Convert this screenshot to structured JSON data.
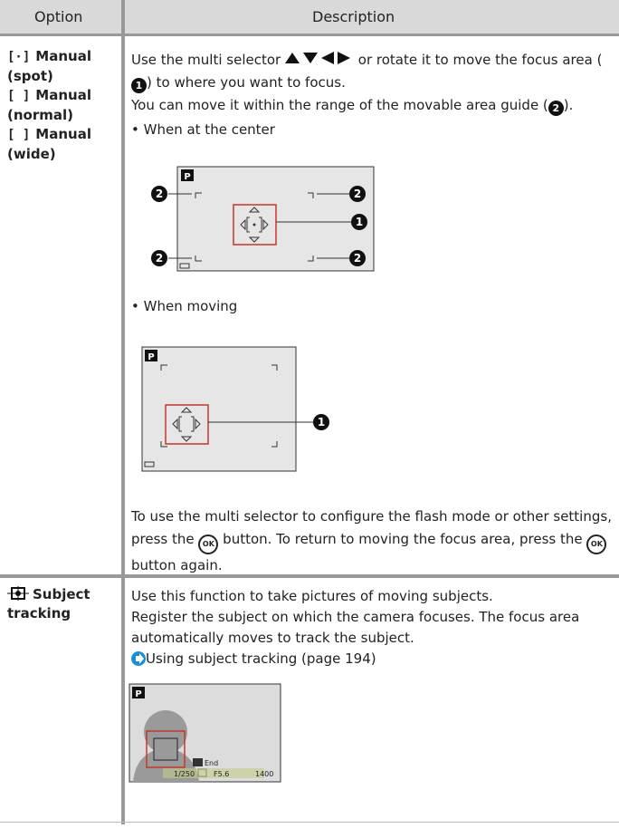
{
  "table": {
    "headers": [
      "Option",
      "Description"
    ],
    "rows": [
      {
        "options": [
          "Manual (spot)",
          "Manual (normal)",
          "Manual (wide)"
        ],
        "paragraphs": [
          [
            "Use the multi selector",
            "or rotate it to move the focus area",
            "(",
            ") to where you want to focus."
          ],
          [
            "You can move it within the range of the movable area guide (",
            ")."
          ]
        ],
        "bullets": [
          "When at the center",
          "When moving"
        ],
        "closing": [
          "To use the multi selector to configure the flash mode or other settings, press the",
          "button. To return to moving the focus area, press the",
          "button again."
        ]
      },
      {
        "options": [
          "Subject tracking"
        ],
        "paragraphs": [
          [
            "Use this function to take pictures of moving subjects."
          ],
          [
            "Register the subject on which the camera focuses. The focus area automatically moves to track the subject."
          ]
        ],
        "link": "Using subject tracking (page 194)",
        "screen_texts": [
          "End",
          "1/250",
          "F5.6",
          "1400"
        ]
      }
    ],
    "callouts": [
      "1",
      "2"
    ],
    "shooting_mode": "P",
    "ok_icon": "OK"
  }
}
